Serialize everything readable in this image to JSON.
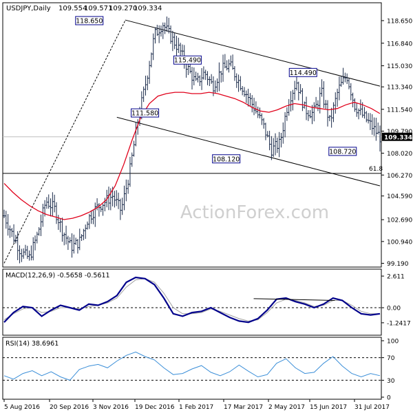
{
  "chart_data": {
    "type": "ohlc",
    "header": {
      "symbol": "USDJPY,Daily",
      "open": "109.554",
      "high": "109.571",
      "low": "109.270",
      "close": "109.334"
    },
    "main_panel": {
      "ylim": [
        99.0,
        119.2
      ],
      "price_ticks": [
        "118.650",
        "116.840",
        "115.030",
        "113.340",
        "111.540",
        "109.790",
        "108.020",
        "106.270",
        "104.590",
        "102.690",
        "100.940",
        "99.190"
      ],
      "current_price": "109.334",
      "fib_level": {
        "label": "61.8",
        "value": 106.4
      },
      "annotations": [
        {
          "label": "118.650",
          "value": 118.65
        },
        {
          "label": "115.490",
          "value": 115.49
        },
        {
          "label": "114.490",
          "value": 114.49
        },
        {
          "label": "111.580",
          "value": 111.58
        },
        {
          "label": "108.120",
          "value": 108.12
        },
        {
          "label": "108.720",
          "value": 108.72
        }
      ],
      "channel_upper": [
        [
          0.322,
          118.7
        ],
        [
          1.0,
          113.4
        ]
      ],
      "channel_lower": [
        [
          0.3,
          110.9
        ],
        [
          1.0,
          105.4
        ]
      ],
      "dotted_trend": [
        [
          0.0,
          99.2
        ],
        [
          0.322,
          118.65
        ]
      ],
      "moving_average": [
        105.6,
        104.9,
        104.3,
        103.8,
        103.4,
        103.1,
        102.9,
        102.7,
        102.8,
        103.0,
        103.3,
        103.7,
        104.3,
        105.4,
        107.1,
        109.1,
        110.9,
        112.0,
        112.6,
        112.8,
        112.9,
        112.9,
        112.8,
        112.8,
        112.9,
        112.8,
        112.6,
        112.4,
        112.1,
        111.7,
        111.4,
        111.3,
        111.5,
        111.8,
        112.0,
        111.9,
        111.7,
        111.6,
        111.5,
        111.6,
        111.9,
        112.1,
        111.9,
        111.6,
        111.2
      ],
      "price_series": [
        103,
        101.5,
        100.1,
        99.6,
        101.5,
        104.2,
        103.6,
        101.8,
        100.5,
        100.9,
        102.7,
        103.6,
        104.1,
        104.6,
        103.4,
        106.4,
        110.6,
        113.8,
        117.5,
        118.4,
        117.3,
        116.3,
        114.8,
        113.6,
        114.5,
        113.4,
        114.7,
        115.1,
        113.9,
        112.8,
        111.6,
        110.3,
        108.3,
        108.8,
        112.1,
        113.8,
        111.5,
        111.2,
        112.9,
        110.5,
        113.1,
        114.3,
        111.8,
        111.0,
        110.2,
        109.3
      ]
    },
    "macd": {
      "title": "MACD(12,26,9) -0.5658 -0.5611",
      "ylim": [
        -2.1,
        2.9
      ],
      "ticks": [
        "2.611",
        "0.00",
        "-1.2417"
      ],
      "zero_level": 0.0,
      "macd_line": [
        -1.2,
        -0.4,
        0.1,
        0.0,
        -0.7,
        -0.2,
        0.2,
        0.0,
        -0.2,
        0.3,
        0.2,
        0.5,
        1.0,
        2.1,
        2.5,
        2.4,
        1.9,
        0.8,
        -0.5,
        -0.7,
        -0.4,
        -0.3,
        0.0,
        -0.4,
        -0.8,
        -1.1,
        -1.2,
        -0.9,
        -0.2,
        0.7,
        0.8,
        0.5,
        0.3,
        0.0,
        0.3,
        0.8,
        0.6,
        0.0,
        -0.5,
        -0.6,
        -0.5
      ],
      "signal_line": [
        -1.0,
        -0.5,
        -0.1,
        0.0,
        -0.4,
        -0.3,
        0.0,
        0.0,
        -0.1,
        0.1,
        0.2,
        0.4,
        0.8,
        1.7,
        2.3,
        2.4,
        2.1,
        1.2,
        0.0,
        -0.5,
        -0.5,
        -0.4,
        -0.1,
        -0.3,
        -0.6,
        -0.9,
        -1.1,
        -1.0,
        -0.4,
        0.4,
        0.7,
        0.6,
        0.4,
        0.1,
        0.2,
        0.6,
        0.6,
        0.2,
        -0.3,
        -0.5,
        -0.5
      ],
      "divergence_line": [
        [
          0.664,
          0.75
        ],
        [
          0.88,
          0.6
        ]
      ]
    },
    "rsi": {
      "title": "RSI(14) 38.6961",
      "ylim": [
        0,
        100
      ],
      "ticks": [
        "100",
        "70",
        "30",
        "0"
      ],
      "levels": [
        70,
        30
      ],
      "values": [
        38,
        32,
        42,
        47,
        38,
        45,
        36,
        30,
        49,
        55,
        58,
        52,
        64,
        74,
        80,
        72,
        66,
        52,
        40,
        42,
        50,
        56,
        44,
        38,
        45,
        57,
        46,
        36,
        40,
        60,
        68,
        52,
        42,
        44,
        60,
        72,
        55,
        42,
        36,
        42,
        38
      ]
    },
    "x_labels": [
      "5 Aug 2016",
      "20 Sep 2016",
      "3 Nov 2016",
      "19 Dec 2016",
      "1 Feb 2017",
      "17 Mar 2017",
      "2 May 2017",
      "15 Jun 2017",
      "31 Jul 2017"
    ],
    "watermark": "ActionForex.com",
    "colors": {
      "bars": "#1a2a4a",
      "ma": "#e0001a",
      "macd": "#00008b",
      "signal": "#a0a0a0",
      "rsi": "#3a8ed8",
      "label_border": "#00008b"
    }
  }
}
